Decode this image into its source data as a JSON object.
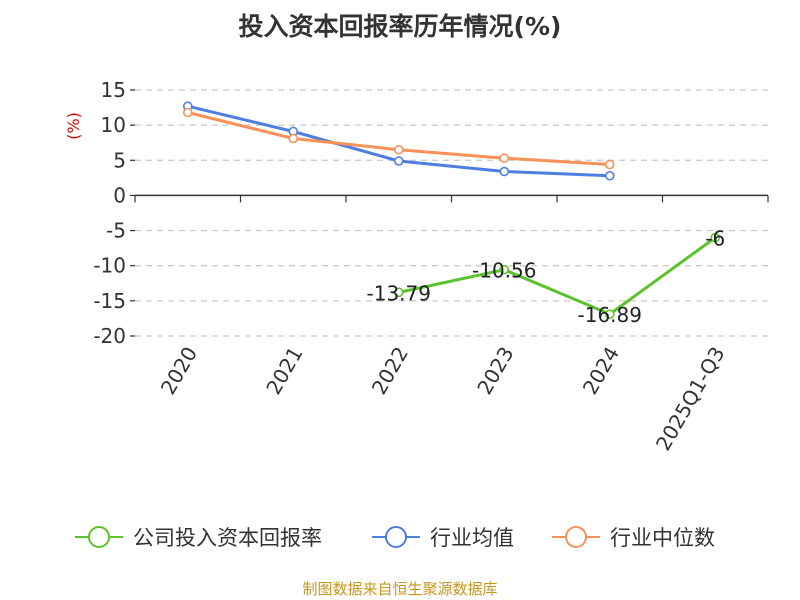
{
  "chart_data": {
    "type": "line",
    "title": "投入资本回报率历年情况(%)",
    "ylabel": "(%)",
    "categories": [
      "2020",
      "2021",
      "2022",
      "2023",
      "2024",
      "2025Q1-Q3"
    ],
    "yticks": [
      "15",
      "10",
      "5",
      "0",
      "-5",
      "-10",
      "-15",
      "-20"
    ],
    "ylim": [
      -20,
      15
    ],
    "grid": true,
    "series": [
      {
        "name": "公司投入资本回报率",
        "color": "#5cc22b",
        "values": [
          null,
          null,
          -13.79,
          -10.56,
          -16.89,
          -6
        ],
        "labels": [
          "",
          "",
          "-13.79",
          "-10.56",
          "-16.89",
          "-6"
        ]
      },
      {
        "name": "行业均值",
        "color": "#4e7fe0",
        "values": [
          12.7,
          9.1,
          4.9,
          3.4,
          2.8,
          null
        ]
      },
      {
        "name": "行业中位数",
        "color": "#f79158",
        "values": [
          11.8,
          8.1,
          6.5,
          5.3,
          4.4,
          null
        ]
      }
    ],
    "legend_position": "bottom",
    "source": "制图数据来自恒生聚源数据库"
  }
}
